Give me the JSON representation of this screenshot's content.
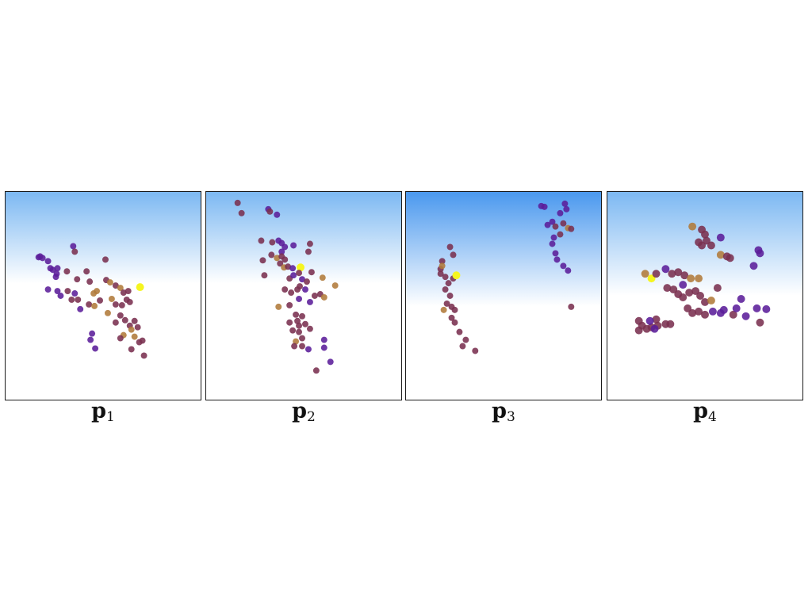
{
  "panels": [
    {
      "label_main": "p",
      "label_sub": "1"
    },
    {
      "label_main": "p",
      "label_sub": "2"
    },
    {
      "label_main": "p",
      "label_sub": "3"
    },
    {
      "label_main": "p",
      "label_sub": "4"
    }
  ],
  "colors": {
    "sky_top": "#7cb8f2",
    "sky_top_p3": "#4a98ee",
    "horizon": "#ffffff",
    "dot_purple": "#5b1e9a",
    "dot_maroon": "#7a3050",
    "dot_orange": "#b07a3a",
    "dot_yellow": "#f5f520"
  }
}
